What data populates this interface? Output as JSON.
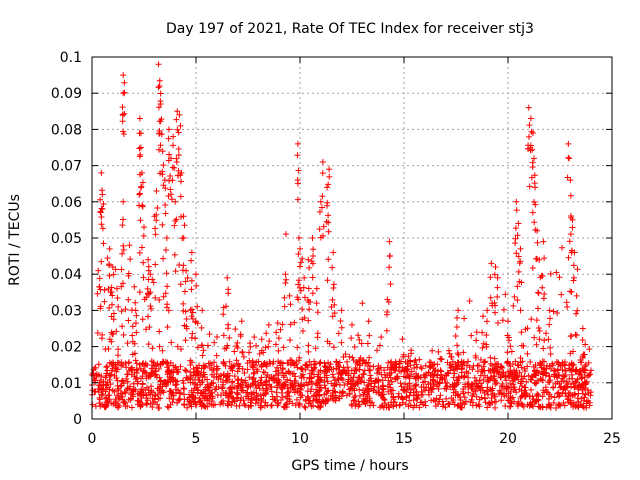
{
  "chart_data": {
    "type": "scatter",
    "title": "Day 197 of 2021, Rate Of TEC Index for receiver stj3",
    "xlabel": "GPS time / hours",
    "ylabel": "ROTI / TECUs",
    "xlim": [
      0,
      25
    ],
    "ylim": [
      0,
      0.1
    ],
    "xticks": [
      "0",
      "5",
      "10",
      "15",
      "20",
      "25"
    ],
    "yticks": [
      "0",
      "0.01",
      "0.02",
      "0.03",
      "0.04",
      "0.05",
      "0.06",
      "0.07",
      "0.08",
      "0.09",
      "0.1"
    ],
    "grid": true,
    "marker": "+",
    "color": "#ff0000",
    "baseline_band": [
      0.003,
      0.016
    ],
    "series": [
      {
        "name": "ROTI",
        "points": [
          [
            0.3,
            0.041
          ],
          [
            0.45,
            0.068
          ],
          [
            0.5,
            0.062
          ],
          [
            0.5,
            0.058
          ],
          [
            0.85,
            0.047
          ],
          [
            1.0,
            0.042
          ],
          [
            1.2,
            0.036
          ],
          [
            1.5,
            0.095
          ],
          [
            1.5,
            0.09
          ],
          [
            1.5,
            0.06
          ],
          [
            1.8,
            0.048
          ],
          [
            2.1,
            0.03
          ],
          [
            2.3,
            0.083
          ],
          [
            2.35,
            0.075
          ],
          [
            2.4,
            0.068
          ],
          [
            2.5,
            0.053
          ],
          [
            2.7,
            0.044
          ],
          [
            2.8,
            0.04
          ],
          [
            3.0,
            0.056
          ],
          [
            3.1,
            0.063
          ],
          [
            3.2,
            0.098
          ],
          [
            3.25,
            0.092
          ],
          [
            3.3,
            0.087
          ],
          [
            3.4,
            0.074
          ],
          [
            3.5,
            0.066
          ],
          [
            3.6,
            0.05
          ],
          [
            3.7,
            0.08
          ],
          [
            3.8,
            0.072
          ],
          [
            3.9,
            0.078
          ],
          [
            4.0,
            0.06
          ],
          [
            4.1,
            0.085
          ],
          [
            4.2,
            0.084
          ],
          [
            4.3,
            0.068
          ],
          [
            4.4,
            0.056
          ],
          [
            4.5,
            0.038
          ],
          [
            4.8,
            0.046
          ],
          [
            5.0,
            0.04
          ],
          [
            5.3,
            0.03
          ],
          [
            6.5,
            0.039
          ],
          [
            7.2,
            0.027
          ],
          [
            8.5,
            0.026
          ],
          [
            9.3,
            0.04
          ],
          [
            9.5,
            0.034
          ],
          [
            9.9,
            0.076
          ],
          [
            9.95,
            0.05
          ],
          [
            10.0,
            0.047
          ],
          [
            10.2,
            0.039
          ],
          [
            10.4,
            0.044
          ],
          [
            10.6,
            0.05
          ],
          [
            10.8,
            0.032
          ],
          [
            11.0,
            0.06
          ],
          [
            11.1,
            0.071
          ],
          [
            11.3,
            0.064
          ],
          [
            11.4,
            0.069
          ],
          [
            11.6,
            0.046
          ],
          [
            12.0,
            0.03
          ],
          [
            12.5,
            0.026
          ],
          [
            13.3,
            0.027
          ],
          [
            14.2,
            0.033
          ],
          [
            14.3,
            0.049
          ],
          [
            17.6,
            0.03
          ],
          [
            18.5,
            0.024
          ],
          [
            19.0,
            0.03
          ],
          [
            19.2,
            0.043
          ],
          [
            19.4,
            0.042
          ],
          [
            19.5,
            0.039
          ],
          [
            20.0,
            0.027
          ],
          [
            20.4,
            0.06
          ],
          [
            20.5,
            0.054
          ],
          [
            20.6,
            0.047
          ],
          [
            21.0,
            0.086
          ],
          [
            21.1,
            0.083
          ],
          [
            21.2,
            0.079
          ],
          [
            21.25,
            0.072
          ],
          [
            21.3,
            0.064
          ],
          [
            21.4,
            0.052
          ],
          [
            21.5,
            0.044
          ],
          [
            21.7,
            0.049
          ],
          [
            22.0,
            0.03
          ],
          [
            22.9,
            0.076
          ],
          [
            23.0,
            0.066
          ],
          [
            23.1,
            0.055
          ],
          [
            23.2,
            0.046
          ],
          [
            23.3,
            0.034
          ],
          [
            23.6,
            0.025
          ]
        ]
      }
    ]
  }
}
